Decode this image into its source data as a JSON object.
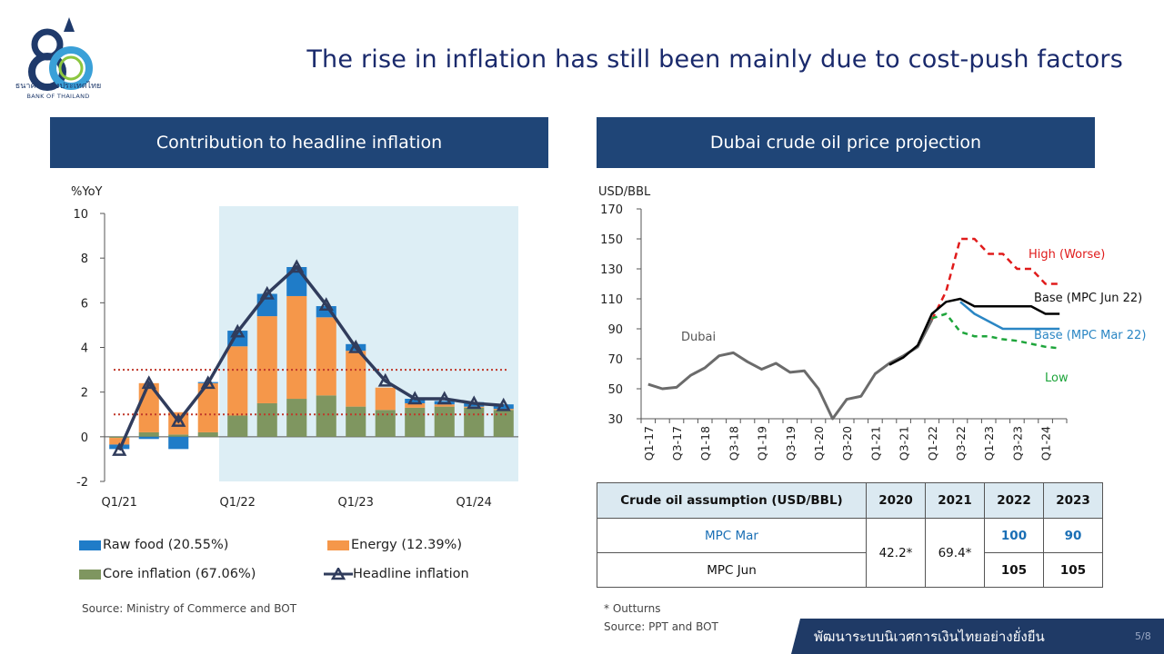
{
  "header": {
    "logo_text": "ธนาคารแห่งประเทศไทย",
    "logo_subtext": "BANK OF THAILAND",
    "title": "The rise in inflation has still been mainly due to cost-push factors"
  },
  "panels": {
    "left_title": "Contribution to headline inflation",
    "right_title": "Dubai crude oil price projection"
  },
  "colors": {
    "raw_food": "#1f7cc8",
    "energy": "#f5974a",
    "core": "#7f9660",
    "headline": "#303c5c",
    "high": "#e01b1b",
    "base_jun": "#000000",
    "base_mar": "#2a86c4",
    "low": "#1ea53b",
    "dubai": "#6b6b6b",
    "shade": "#ddeef5",
    "target_band": "#c0392b"
  },
  "chart_data": [
    {
      "type": "bar",
      "stacked": true,
      "ylabel": "%YoY",
      "ylim": [
        -2,
        10
      ],
      "yticks": [
        -2,
        0,
        2,
        4,
        6,
        8,
        10
      ],
      "x_tick_labels": [
        "Q1/21",
        "Q1/22",
        "Q1/23",
        "Q1/24"
      ],
      "x_tick_positions": [
        0,
        4,
        8,
        12
      ],
      "categories": [
        "Q1/21",
        "Q2/21",
        "Q3/21",
        "Q4/21",
        "Q1/22",
        "Q2/22",
        "Q3/22",
        "Q4/22",
        "Q1/23",
        "Q2/23",
        "Q3/23",
        "Q4/23",
        "Q1/24",
        "Q2/24"
      ],
      "series": [
        {
          "name": "Raw food (20.55%)",
          "kind": "bar",
          "values": [
            -0.2,
            -0.1,
            -0.55,
            0.05,
            0.7,
            1.0,
            1.3,
            0.5,
            0.3,
            0.0,
            0.2,
            0.15,
            0.2,
            0.2
          ]
        },
        {
          "name": "Energy (12.39%)",
          "kind": "bar",
          "values": [
            -0.3,
            2.2,
            1.0,
            2.2,
            3.1,
            3.9,
            4.6,
            3.5,
            2.5,
            1.0,
            0.2,
            0.1,
            0.05,
            0.05
          ]
        },
        {
          "name": "Core inflation (67.06%)",
          "kind": "bar",
          "values": [
            -0.05,
            0.2,
            0.1,
            0.2,
            0.95,
            1.5,
            1.7,
            1.85,
            1.35,
            1.2,
            1.3,
            1.35,
            1.3,
            1.2
          ]
        },
        {
          "name": "Headline inflation",
          "kind": "line",
          "values": [
            -0.6,
            2.4,
            0.7,
            2.4,
            4.7,
            6.4,
            7.6,
            5.9,
            4.0,
            2.5,
            1.7,
            1.7,
            1.5,
            1.4
          ]
        }
      ],
      "reference_lines": [
        1,
        3
      ],
      "shaded_region": {
        "from": "Q1/22",
        "to": "Q2/24"
      },
      "grid": false,
      "legend_position": "bottom"
    },
    {
      "type": "line",
      "ylabel": "USD/BBL",
      "ylim": [
        30,
        170
      ],
      "yticks": [
        30,
        50,
        70,
        90,
        110,
        130,
        150,
        170
      ],
      "x": [
        "Q1-17",
        "Q2-17",
        "Q3-17",
        "Q4-17",
        "Q1-18",
        "Q2-18",
        "Q3-18",
        "Q4-18",
        "Q1-19",
        "Q2-19",
        "Q3-19",
        "Q4-19",
        "Q1-20",
        "Q2-20",
        "Q3-20",
        "Q4-20",
        "Q1-21",
        "Q2-21",
        "Q3-21",
        "Q4-21",
        "Q1-22",
        "Q2-22",
        "Q3-22",
        "Q4-22",
        "Q1-23",
        "Q2-23",
        "Q3-23",
        "Q4-23",
        "Q1-24",
        "Q2-24"
      ],
      "x_tick_labels": [
        "Q1-17",
        "Q3-17",
        "Q1-18",
        "Q3-18",
        "Q1-19",
        "Q3-19",
        "Q1-20",
        "Q3-20",
        "Q1-21",
        "Q3-21",
        "Q1-22",
        "Q3-22",
        "Q1-23",
        "Q3-23",
        "Q1-24"
      ],
      "series": [
        {
          "name": "Dubai",
          "style": "solid",
          "values": [
            53,
            50,
            51,
            59,
            64,
            72,
            74,
            68,
            63,
            67,
            61,
            62,
            50,
            30,
            43,
            45,
            60,
            67,
            72,
            78,
            96,
            null,
            null,
            null,
            null,
            null,
            null,
            null,
            null,
            null
          ]
        },
        {
          "name": "High (Worse)",
          "style": "dashed",
          "values": [
            null,
            null,
            null,
            null,
            null,
            null,
            null,
            null,
            null,
            null,
            null,
            null,
            null,
            null,
            null,
            null,
            null,
            null,
            null,
            null,
            96,
            115,
            150,
            150,
            140,
            140,
            130,
            130,
            120,
            120
          ]
        },
        {
          "name": "Base (MPC Jun 22)",
          "style": "solid",
          "values": [
            null,
            null,
            null,
            null,
            null,
            null,
            null,
            null,
            null,
            null,
            null,
            null,
            null,
            null,
            null,
            null,
            null,
            66,
            71,
            79,
            100,
            108,
            110,
            105,
            105,
            105,
            105,
            105,
            100,
            100
          ]
        },
        {
          "name": "Base (MPC Mar 22)",
          "style": "solid",
          "values": [
            null,
            null,
            null,
            null,
            null,
            null,
            null,
            null,
            null,
            null,
            null,
            null,
            null,
            null,
            null,
            null,
            null,
            null,
            null,
            null,
            null,
            null,
            108,
            100,
            95,
            90,
            90,
            90,
            90,
            90
          ]
        },
        {
          "name": "Low",
          "style": "dashed",
          "values": [
            null,
            null,
            null,
            null,
            null,
            null,
            null,
            null,
            null,
            null,
            null,
            null,
            null,
            null,
            null,
            null,
            null,
            null,
            null,
            null,
            97,
            100,
            88,
            85,
            85,
            83,
            82,
            80,
            78,
            77
          ]
        }
      ],
      "annotations": [
        "Dubai",
        "High (Worse)",
        "Base (MPC Jun 22)",
        "Base (MPC Mar 22)",
        "Low"
      ],
      "grid": false
    }
  ],
  "legend_left": {
    "raw_food": "Raw food (20.55%)",
    "energy": "Energy (12.39%)",
    "core": "Core inflation (67.06%)",
    "headline": "Headline inflation"
  },
  "source_left": "Source: Ministry of Commerce and BOT",
  "table": {
    "header": [
      "Crude oil assumption (USD/BBL)",
      "2020",
      "2021",
      "2022",
      "2023"
    ],
    "rows": [
      {
        "label": "MPC Mar",
        "y2022": "100",
        "y2023": "90"
      },
      {
        "label": "MPC Jun",
        "y2022": "105",
        "y2023": "105"
      }
    ],
    "merged_2020": "42.2*",
    "merged_2021": "69.4*"
  },
  "notes_right": {
    "outturns": "* Outturns",
    "source": "Source: PPT and BOT"
  },
  "footer": {
    "text": "พัฒนาระบบนิเวศการเงินไทยอย่างยั่งยืน",
    "page": "5/8"
  }
}
